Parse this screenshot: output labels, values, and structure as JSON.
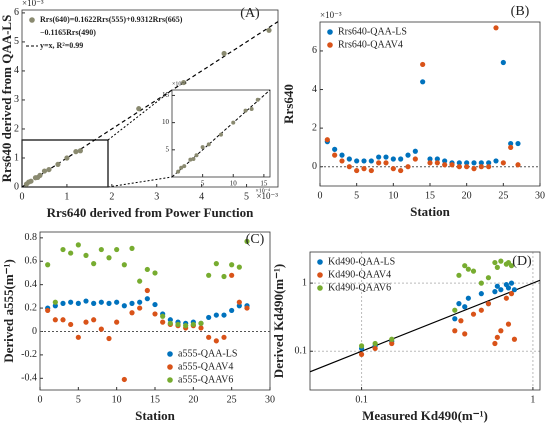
{
  "chart_data": [
    {
      "type": "scatter",
      "label": "(A)",
      "xlabel": "Rrs640 derived from Power Function",
      "ylabel": "Rrs640 derived from QAA-LS",
      "xexponent": "×10⁻³",
      "yexponent": "×10⁻³",
      "xlim": [
        0,
        5.7
      ],
      "ylim": [
        0,
        6.1
      ],
      "xticks": [
        0,
        1,
        2,
        3,
        4,
        5
      ],
      "yticks": [
        0,
        1,
        2,
        3,
        4,
        5,
        6
      ],
      "legend": "upper left",
      "identity_line": "dashed",
      "identity_line_label": "y=x, R²=0.99",
      "series": [
        {
          "name": [
            "Rrs(640)=0.1622Rrs(555)+0.9312Rrs(665)",
            "−0.1165Rrs(490)"
          ],
          "color": "#8a8a70",
          "x": [
            0.1,
            0.15,
            0.2,
            0.3,
            0.35,
            0.4,
            0.5,
            0.6,
            0.8,
            1.0,
            1.2,
            1.3,
            2.6,
            3.6,
            4.5,
            5.5
          ],
          "values": [
            0.1,
            0.17,
            0.2,
            0.32,
            0.33,
            0.4,
            0.55,
            0.6,
            0.78,
            1.0,
            1.22,
            1.25,
            2.7,
            3.6,
            4.6,
            5.4
          ]
        }
      ],
      "inset": {
        "xlim": [
          0,
          16
        ],
        "ylim": [
          0,
          16
        ],
        "xticks": [
          5,
          10,
          15
        ],
        "yticks": [
          5,
          10,
          15
        ],
        "xexponent": "×10⁻⁴",
        "yexponent": "×10⁻⁴",
        "x": [
          1,
          1.5,
          2,
          3,
          3.5,
          4,
          5,
          6,
          8,
          10,
          12,
          13,
          14
        ],
        "values": [
          1,
          1.7,
          2,
          3.2,
          3.3,
          4,
          5.5,
          6,
          7.8,
          10,
          12.2,
          12.5,
          14.2
        ]
      }
    },
    {
      "type": "scatter",
      "label": "(B)",
      "xlabel": "Station",
      "ylabel": "Rrs640",
      "yexponent": "×10⁻³",
      "xlim": [
        0,
        30
      ],
      "ylim": [
        -1,
        7.5
      ],
      "xticks": [
        0,
        5,
        10,
        15,
        20,
        25,
        30
      ],
      "yticks": [
        0,
        2,
        4,
        6
      ],
      "legend": "upper left",
      "zero_line": true,
      "x": [
        1,
        2,
        3,
        4,
        5,
        6,
        7,
        8,
        9,
        10,
        11,
        12,
        13,
        14,
        15,
        16,
        17,
        18,
        19,
        20,
        21,
        22,
        23,
        24,
        25,
        26,
        27
      ],
      "series": [
        {
          "name": "Rrs640-QAA-LS",
          "color": "#0072bd",
          "values": [
            1.3,
            0.9,
            0.6,
            0.4,
            0.3,
            0.3,
            0.3,
            0.5,
            0.5,
            0.4,
            0.4,
            0.6,
            0.8,
            4.4,
            0.4,
            0.4,
            0.3,
            0.2,
            0.2,
            0.2,
            0.2,
            0.2,
            0.2,
            0.3,
            5.4,
            1.2,
            1.2
          ]
        },
        {
          "name": "Rrs640-QAAV4",
          "color": "#d95319",
          "values": [
            1.4,
            0.6,
            0.3,
            0.0,
            -0.2,
            -0.1,
            -0.2,
            0.2,
            0.2,
            -0.1,
            -0.2,
            0.0,
            0.4,
            5.3,
            0.2,
            0.2,
            0.1,
            0.1,
            0.0,
            0.0,
            -0.1,
            0.0,
            0.0,
            7.2,
            0.2,
            1.0,
            0.1
          ]
        }
      ]
    },
    {
      "type": "scatter",
      "label": "(C)",
      "xlabel": "Station",
      "ylabel": "Derived a555(m⁻¹)",
      "xlim": [
        0,
        30
      ],
      "ylim": [
        -0.5,
        0.85
      ],
      "xticks": [
        0,
        5,
        10,
        15,
        20,
        25,
        30
      ],
      "yticks": [
        -0.4,
        -0.2,
        0,
        0.2,
        0.4,
        0.6,
        0.8
      ],
      "legend": "lower right",
      "zero_line": true,
      "x": [
        1,
        2,
        3,
        4,
        5,
        6,
        7,
        8,
        9,
        10,
        11,
        12,
        13,
        14,
        15,
        16,
        17,
        18,
        19,
        20,
        21,
        22,
        23,
        24,
        25,
        26,
        27
      ],
      "series": [
        {
          "name": "a555-QAA-LS",
          "color": "#0072bd",
          "values": [
            0.2,
            0.22,
            0.24,
            0.25,
            0.24,
            0.26,
            0.24,
            0.25,
            0.24,
            0.25,
            0.22,
            0.24,
            0.25,
            0.28,
            0.23,
            0.15,
            0.1,
            0.08,
            0.07,
            0.08,
            0.07,
            0.12,
            0.14,
            0.14,
            0.18,
            0.22,
            0.22
          ]
        },
        {
          "name": "a555-QAAV4",
          "color": "#d95319",
          "values": [
            0.18,
            0.1,
            0.1,
            0.06,
            -0.05,
            0.08,
            0.1,
            0.02,
            -0.06,
            0.08,
            -0.41,
            0.16,
            0.2,
            0.35,
            0.15,
            0.08,
            0.06,
            0.05,
            0.03,
            0.05,
            0.03,
            -0.05,
            -0.08,
            -0.05,
            0.48,
            0.25,
            0.2
          ]
        },
        {
          "name": "a555-QAAV6",
          "color": "#77ac30",
          "values": [
            0.57,
            0.25,
            0.7,
            0.67,
            0.74,
            0.65,
            0.58,
            0.7,
            0.63,
            0.7,
            0.57,
            0.71,
            0.43,
            0.53,
            0.5,
            0.13,
            0.07,
            0.06,
            0.05,
            0.06,
            0.07,
            0.48,
            0.58,
            0.47,
            0.57,
            0.55,
            0.77
          ]
        }
      ]
    },
    {
      "type": "scatter",
      "label": "(D)",
      "xlabel": "Measured Kd490(m⁻¹)",
      "ylabel": "Derived Kd490(m⁻¹)",
      "xscale": "log",
      "yscale": "log",
      "grid": true,
      "identity_line": "solid",
      "xlim": [
        0.05,
        1.1
      ],
      "ylim": [
        0.027,
        2.86
      ],
      "xticks": [
        0.1,
        1
      ],
      "yticks": [
        0.1,
        1
      ],
      "legend": "upper left",
      "series": [
        {
          "name": "Kd490-QAA-LS",
          "color": "#0072bd",
          "x": [
            0.1,
            0.12,
            0.15,
            0.35,
            0.37,
            0.4,
            0.42,
            0.5,
            0.55,
            0.6,
            0.62,
            0.65,
            0.7,
            0.72,
            0.75,
            0.78
          ],
          "values": [
            0.11,
            0.12,
            0.14,
            0.3,
            0.5,
            0.45,
            0.6,
            0.7,
            0.5,
            0.75,
            0.9,
            0.8,
            0.95,
            0.85,
            1.0,
            0.8
          ]
        },
        {
          "name": "Kd490-QAAV4",
          "color": "#d95319",
          "x": [
            0.1,
            0.12,
            0.15,
            0.35,
            0.38,
            0.4,
            0.45,
            0.5,
            0.55,
            0.6,
            0.62,
            0.65,
            0.7,
            0.72,
            0.75,
            0.78
          ],
          "values": [
            0.09,
            0.11,
            0.13,
            0.2,
            0.28,
            0.18,
            0.35,
            0.4,
            0.5,
            0.13,
            0.16,
            0.2,
            0.6,
            0.25,
            0.7,
            0.15
          ]
        },
        {
          "name": "Kd490-QAAV6",
          "color": "#77ac30",
          "x": [
            0.1,
            0.12,
            0.15,
            0.35,
            0.37,
            0.4,
            0.42,
            0.45,
            0.5,
            0.55,
            0.6,
            0.62,
            0.65,
            0.7,
            0.72,
            0.75
          ],
          "values": [
            0.12,
            0.13,
            0.15,
            0.4,
            1.3,
            1.8,
            1.6,
            1.5,
            1.0,
            1.2,
            2.0,
            1.7,
            2.1,
            1.9,
            2.0,
            1.8
          ]
        }
      ]
    }
  ]
}
